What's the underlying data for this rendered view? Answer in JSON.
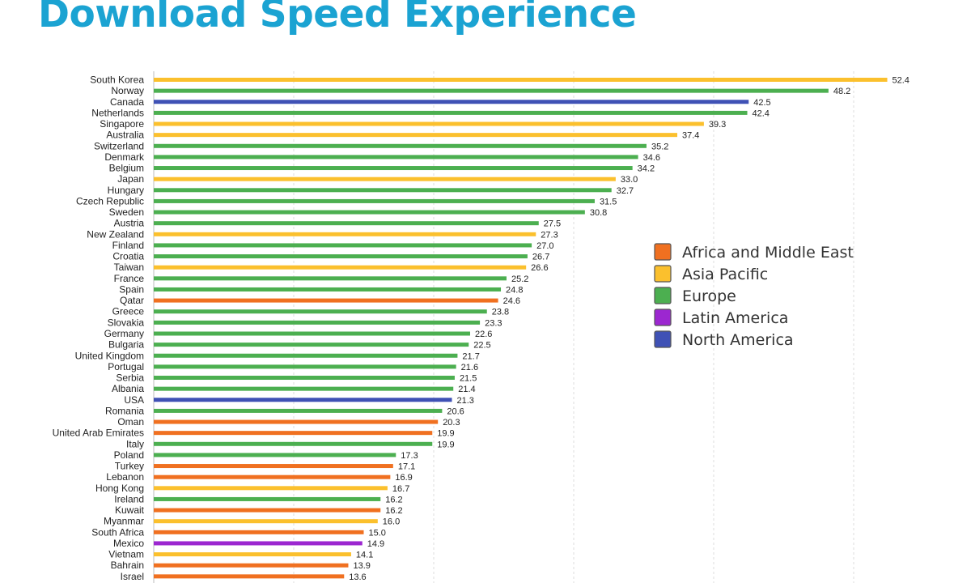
{
  "title": "Download Speed Experience",
  "colors": {
    "Africa and Middle East": "#f07020",
    "Asia Pacific": "#fbc02d",
    "Europe": "#4caf50",
    "Latin America": "#9c27d0",
    "North America": "#3f51b5"
  },
  "chart_data": {
    "type": "bar",
    "orientation": "horizontal",
    "xlim": [
      0,
      50
    ],
    "grid": true,
    "legend": {
      "placement": "right",
      "entries": [
        "Africa and Middle East",
        "Asia Pacific",
        "Europe",
        "Latin America",
        "North America"
      ]
    },
    "categories": [
      "South Korea",
      "Norway",
      "Canada",
      "Netherlands",
      "Singapore",
      "Australia",
      "Switzerland",
      "Denmark",
      "Belgium",
      "Japan",
      "Hungary",
      "Czech Republic",
      "Sweden",
      "Austria",
      "New Zealand",
      "Finland",
      "Croatia",
      "Taiwan",
      "France",
      "Spain",
      "Qatar",
      "Greece",
      "Slovakia",
      "Germany",
      "Bulgaria",
      "United Kingdom",
      "Portugal",
      "Serbia",
      "Albania",
      "USA",
      "Romania",
      "Oman",
      "United Arab Emirates",
      "Italy",
      "Poland",
      "Turkey",
      "Lebanon",
      "Hong Kong",
      "Ireland",
      "Kuwait",
      "Myanmar",
      "South Africa",
      "Mexico",
      "Vietnam",
      "Bahrain",
      "Israel"
    ],
    "values": [
      52.4,
      48.2,
      42.5,
      42.4,
      39.3,
      37.4,
      35.2,
      34.6,
      34.2,
      33.0,
      32.7,
      31.5,
      30.8,
      27.5,
      27.3,
      27.0,
      26.7,
      26.6,
      25.2,
      24.8,
      24.6,
      23.8,
      23.3,
      22.6,
      22.5,
      21.7,
      21.6,
      21.5,
      21.4,
      21.3,
      20.6,
      20.3,
      19.9,
      19.9,
      17.3,
      17.1,
      16.9,
      16.7,
      16.2,
      16.2,
      16.0,
      15.0,
      14.9,
      14.1,
      13.9,
      13.6
    ],
    "value_labels": [
      "52.4",
      "48.2",
      "42.5",
      "42.4",
      "39.3",
      "37.4",
      "35.2",
      "34.6",
      "34.2",
      "33.0",
      "32.7",
      "31.5",
      "30.8",
      "27.5",
      "27.3",
      "27.0",
      "26.7",
      "26.6",
      "25.2",
      "24.8",
      "24.6",
      "23.8",
      "23.3",
      "22.6",
      "22.5",
      "21.7",
      "21.6",
      "21.5",
      "21.4",
      "21.3",
      "20.6",
      "20.3",
      "19.9",
      "19.9",
      "17.3",
      "17.1",
      "16.9",
      "16.7",
      "16.2",
      "16.2",
      "16.0",
      "15.0",
      "14.9",
      "14.1",
      "13.9",
      "13.6"
    ],
    "regions": [
      "Asia Pacific",
      "Europe",
      "North America",
      "Europe",
      "Asia Pacific",
      "Asia Pacific",
      "Europe",
      "Europe",
      "Europe",
      "Asia Pacific",
      "Europe",
      "Europe",
      "Europe",
      "Europe",
      "Asia Pacific",
      "Europe",
      "Europe",
      "Asia Pacific",
      "Europe",
      "Europe",
      "Africa and Middle East",
      "Europe",
      "Europe",
      "Europe",
      "Europe",
      "Europe",
      "Europe",
      "Europe",
      "Europe",
      "North America",
      "Europe",
      "Africa and Middle East",
      "Africa and Middle East",
      "Europe",
      "Europe",
      "Africa and Middle East",
      "Africa and Middle East",
      "Asia Pacific",
      "Europe",
      "Africa and Middle East",
      "Asia Pacific",
      "Africa and Middle East",
      "Latin America",
      "Asia Pacific",
      "Africa and Middle East",
      "Africa and Middle East"
    ]
  }
}
